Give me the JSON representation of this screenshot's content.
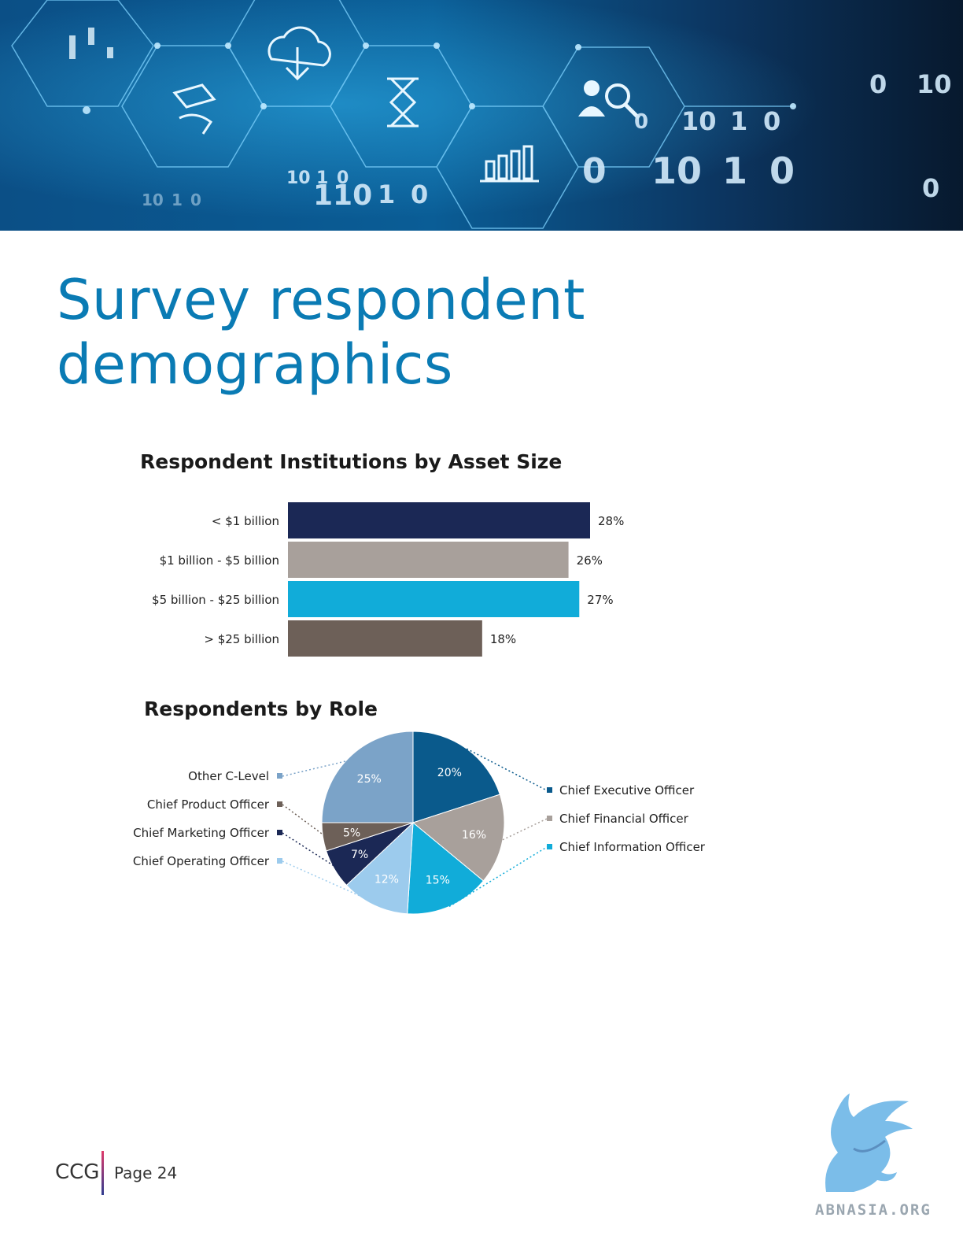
{
  "page": {
    "title": "Survey respondent demographics",
    "footer_brand": "CCG",
    "footer_page": "Page 24",
    "watermark": "ABNASIA.ORG"
  },
  "hero": {
    "digits": [
      "0",
      "10",
      "10",
      "1",
      "0",
      "0",
      "10",
      "1",
      "0",
      "0",
      "10",
      "1",
      "0",
      "110",
      "1",
      "0",
      "10",
      "1",
      "0",
      "0"
    ],
    "icons": [
      "candlestick-icon",
      "cloud-download-icon",
      "money-hand-icon",
      "hourglass-icon",
      "bar-chart-icon",
      "user-search-icon"
    ]
  },
  "chart_data": [
    {
      "type": "bar",
      "orientation": "horizontal",
      "title": "Respondent Institutions by Asset Size",
      "categories": [
        "< $1 billion",
        "$1 billion - $5 billion",
        "$5 billion - $25 billion",
        "> $25 billion"
      ],
      "values": [
        28,
        26,
        27,
        18
      ],
      "value_labels": [
        "28%",
        "26%",
        "27%",
        "18%"
      ],
      "colors": [
        "#1b2855",
        "#a8a09b",
        "#11acd9",
        "#6d6058"
      ],
      "xlim": [
        0,
        28
      ],
      "grid": false
    },
    {
      "type": "pie",
      "title": "Respondents by Role",
      "slices": [
        {
          "label": "Chief Executive Officer",
          "value": 20,
          "value_label": "20%",
          "color": "#0a5a8c"
        },
        {
          "label": "Chief Financial Officer",
          "value": 16,
          "value_label": "16%",
          "color": "#a8a09b"
        },
        {
          "label": "Chief Information Officer",
          "value": 15,
          "value_label": "15%",
          "color": "#11acd9"
        },
        {
          "label": "Chief Operating Officer",
          "value": 12,
          "value_label": "12%",
          "color": "#9ccbed"
        },
        {
          "label": "Chief Marketing Officer",
          "value": 7,
          "value_label": "7%",
          "color": "#1b2855"
        },
        {
          "label": "Chief Product Officer",
          "value": 5,
          "value_label": "5%",
          "color": "#6d6058"
        },
        {
          "label": "Other C-Level",
          "value": 25,
          "value_label": "25%",
          "color": "#7ba3c8"
        }
      ],
      "legend": "callouts-left-right"
    }
  ]
}
